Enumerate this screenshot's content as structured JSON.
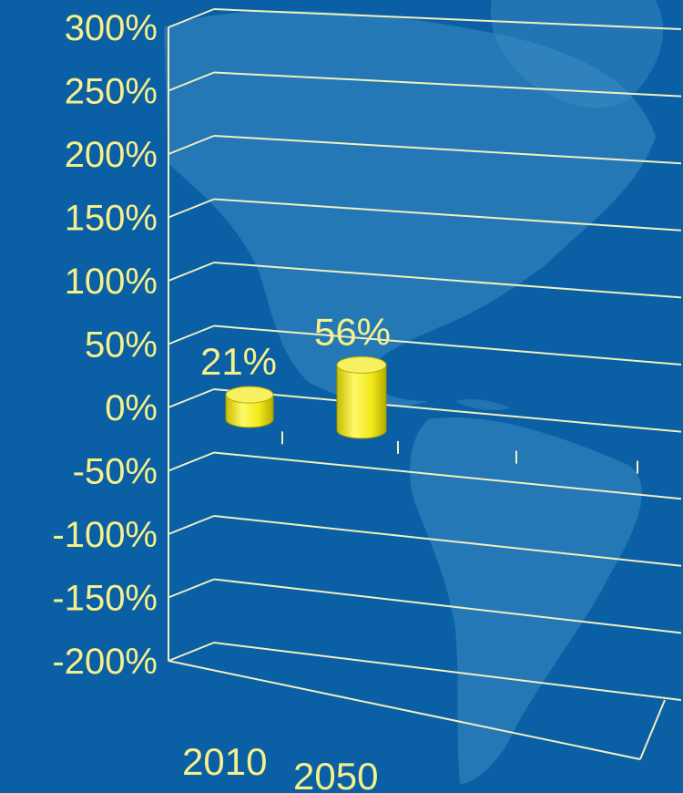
{
  "colors": {
    "background": "#0a5fa5",
    "landmass": "#3a8cc2",
    "gridline": "#f2efc0",
    "label_text": "#f6f08a",
    "bar_fill": "#f2ea1a"
  },
  "chart_data": {
    "type": "bar",
    "style": "3d-cylinder",
    "title": "",
    "xlabel": "",
    "ylabel": "",
    "categories": [
      "2010",
      "2050"
    ],
    "values": [
      21,
      56
    ],
    "value_labels": [
      "21%",
      "56%"
    ],
    "ylim": [
      -200,
      300
    ],
    "ytick_step": 50,
    "yticks": [
      "300%",
      "250%",
      "200%",
      "150%",
      "100%",
      "50%",
      "0%",
      "-50%",
      "-100%",
      "-150%",
      "-200%"
    ],
    "grid": true,
    "legend": "none"
  }
}
